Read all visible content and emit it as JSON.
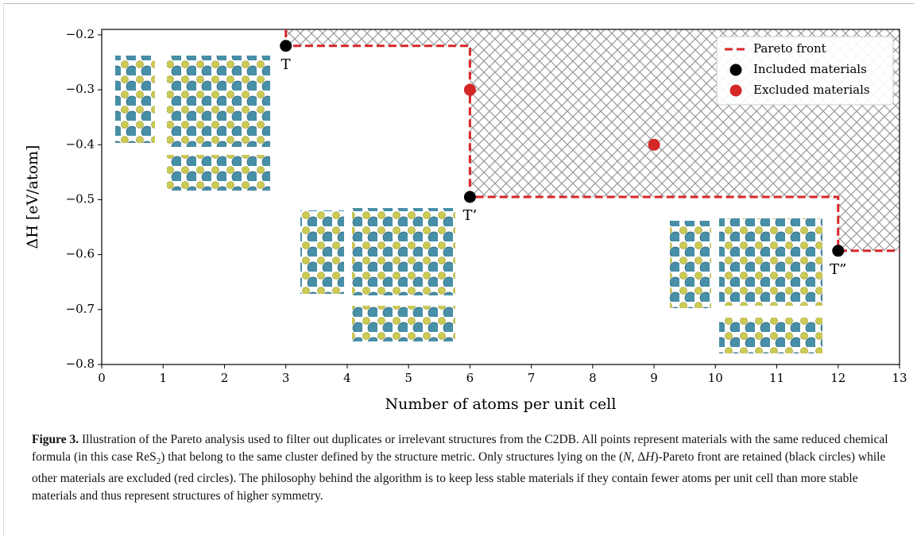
{
  "chart_data": {
    "type": "scatter",
    "xlabel": "Number of atoms per unit cell",
    "ylabel": "ΔH [eV/atom]",
    "xlim": [
      0,
      13
    ],
    "ylim": [
      -0.8,
      -0.19
    ],
    "xticks": [
      0,
      1,
      2,
      3,
      4,
      5,
      6,
      7,
      8,
      9,
      10,
      11,
      12,
      13
    ],
    "yticks": [
      {
        "value": -0.8,
        "label": "−0.8"
      },
      {
        "value": -0.7,
        "label": "−0.7"
      },
      {
        "value": -0.6,
        "label": "−0.6"
      },
      {
        "value": -0.5,
        "label": "−0.5"
      },
      {
        "value": -0.4,
        "label": "−0.4"
      },
      {
        "value": -0.3,
        "label": "−0.3"
      },
      {
        "value": -0.2,
        "label": "−0.2"
      }
    ],
    "legend_position": "upper right",
    "front": {
      "name": "Pareto front",
      "color": "#d62728",
      "x": [
        3,
        3,
        6,
        6,
        12,
        12,
        13
      ],
      "y": [
        -0.19,
        -0.22,
        -0.22,
        -0.495,
        -0.495,
        -0.593,
        -0.593
      ]
    },
    "series": [
      {
        "name": "Included materials",
        "color": "#000000",
        "x": [
          3,
          6,
          12
        ],
        "values": [
          -0.22,
          -0.495,
          -0.593
        ]
      },
      {
        "name": "Excluded materials",
        "color": "#d62728",
        "x": [
          6,
          9
        ],
        "values": [
          -0.3,
          -0.4
        ]
      }
    ],
    "annotations": [
      "T",
      "T’",
      "T”"
    ]
  },
  "caption": {
    "label": "Figure 3.",
    "parts": [
      " Illustration of the Pareto analysis used to filter out duplicates or irrelevant structures from the C2DB. All points represent materials with the same reduced chemical formula (in this case ReS",
      "2",
      ") that belong to the same cluster defined by the structure metric. Only structures lying on the (",
      "N",
      ", Δ",
      "H",
      ")-Pareto front are retained (black circles) while other materials are excluded (red circles). The philosophy behind the algorithm is to keep less stable materials if they contain fewer atoms per unit cell than more stable materials and thus represent structures of higher symmetry."
    ]
  }
}
